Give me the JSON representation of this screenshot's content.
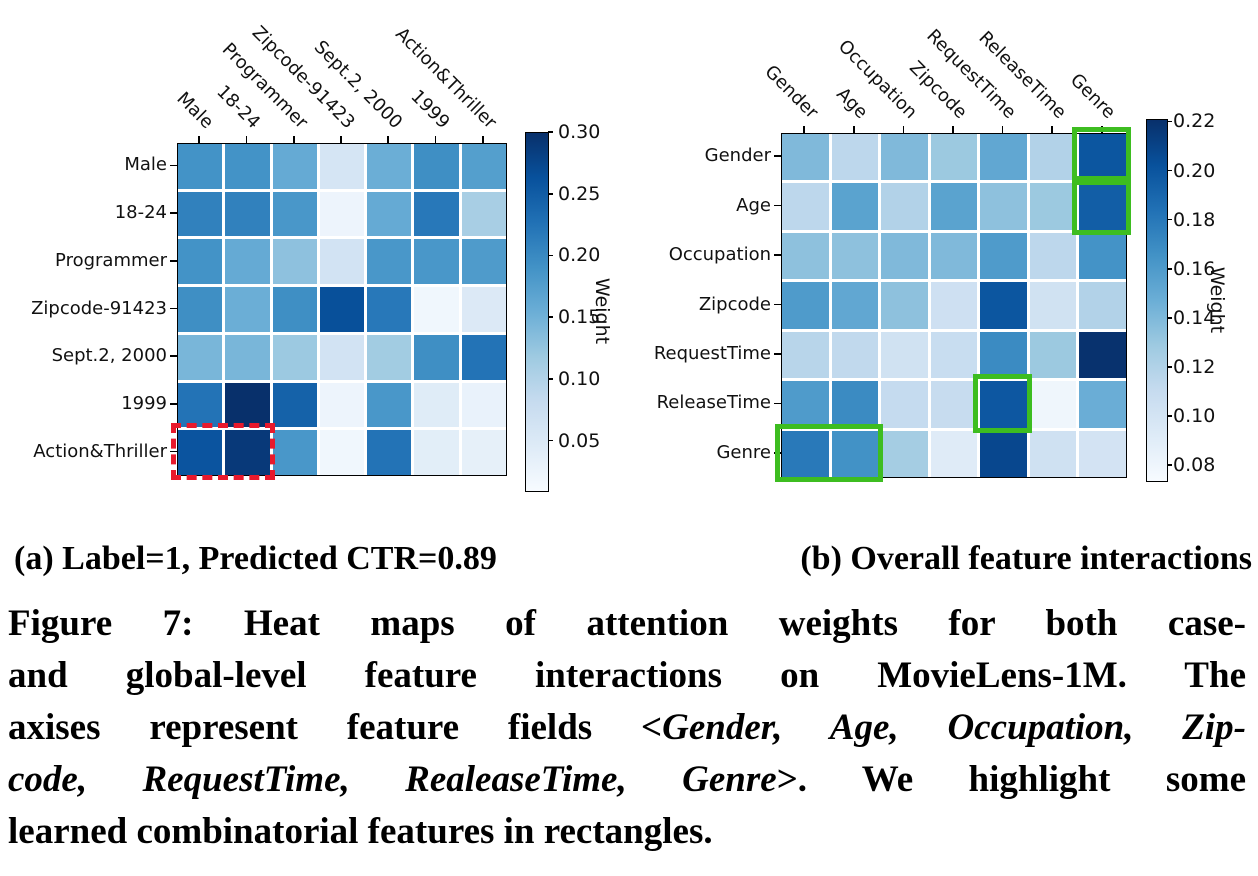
{
  "subcaptions": {
    "a": "(a) Label=1, Predicted CTR=0.89",
    "b": "(b) Overall feature interactions"
  },
  "caption": {
    "lines": [
      {
        "justify": true,
        "segments": [
          {
            "text": "Figure 7: Heat maps of attention weights for both case-",
            "italic": false
          }
        ]
      },
      {
        "justify": true,
        "segments": [
          {
            "text": "and global-level feature interactions on MovieLens-1M. The",
            "italic": false
          }
        ]
      },
      {
        "justify": true,
        "segments": [
          {
            "text": "axises represent feature fields <",
            "italic": false
          },
          {
            "text": "Gender, Age, Occupation, Zip-",
            "italic": true
          }
        ]
      },
      {
        "justify": true,
        "segments": [
          {
            "text": "code, RequestTime, RealeaseTime, Genre",
            "italic": true
          },
          {
            "text": ">. We highlight some",
            "italic": false
          }
        ]
      },
      {
        "justify": false,
        "segments": [
          {
            "text": "learned combinatorial features in rectangles.",
            "italic": false
          }
        ]
      }
    ]
  },
  "chart_data": [
    {
      "type": "heatmap",
      "panel": "a",
      "title": "(a) Label=1, Predicted CTR=0.89",
      "colormap": "Blues",
      "x_labels": [
        "Male",
        "18-24",
        "Programmer",
        "Zipcode-91423",
        "Sept.2, 2000",
        "1999",
        "Action&Thriller"
      ],
      "y_labels": [
        "Male",
        "18-24",
        "Programmer",
        "Zipcode-91423",
        "Sept.2, 2000",
        "1999",
        "Action&Thriller"
      ],
      "colorbar": {
        "label": "Weight",
        "vmin": 0.01,
        "vmax": 0.3,
        "ticks": [
          0.3,
          0.25,
          0.2,
          0.15,
          0.1,
          0.05
        ]
      },
      "values": [
        [
          0.19,
          0.19,
          0.16,
          0.06,
          0.155,
          0.195,
          0.175
        ],
        [
          0.21,
          0.21,
          0.185,
          0.025,
          0.16,
          0.22,
          0.11
        ],
        [
          0.19,
          0.16,
          0.13,
          0.065,
          0.185,
          0.185,
          0.18
        ],
        [
          0.195,
          0.155,
          0.195,
          0.265,
          0.22,
          0.02,
          0.05
        ],
        [
          0.145,
          0.145,
          0.12,
          0.065,
          0.115,
          0.195,
          0.225
        ],
        [
          0.225,
          0.3,
          0.245,
          0.025,
          0.185,
          0.045,
          0.03
        ],
        [
          0.26,
          0.29,
          0.185,
          0.02,
          0.225,
          0.04,
          0.035
        ]
      ],
      "highlights": [
        {
          "row": 6,
          "col": 0,
          "rowspan": 1,
          "colspan": 2,
          "style": "dashed",
          "color": "#e8192c",
          "note": "highlighted case-level combinatorial feature"
        }
      ]
    },
    {
      "type": "heatmap",
      "panel": "b",
      "title": "(b) Overall feature interactions",
      "colormap": "Blues",
      "x_labels": [
        "Gender",
        "Age",
        "Occupation",
        "Zipcode",
        "RequestTime",
        "ReleaseTime",
        "Genre"
      ],
      "y_labels": [
        "Gender",
        "Age",
        "Occupation",
        "Zipcode",
        "RequestTime",
        "ReleaseTime",
        "Genre"
      ],
      "colorbar": {
        "label": "Weight",
        "vmin": 0.074,
        "vmax": 0.221,
        "ticks": [
          0.22,
          0.2,
          0.18,
          0.16,
          0.14,
          0.12,
          0.1,
          0.08
        ]
      },
      "values": [
        [
          0.14,
          0.115,
          0.14,
          0.13,
          0.152,
          0.12,
          0.2
        ],
        [
          0.115,
          0.155,
          0.12,
          0.155,
          0.135,
          0.13,
          0.195
        ],
        [
          0.135,
          0.135,
          0.14,
          0.14,
          0.16,
          0.115,
          0.165
        ],
        [
          0.16,
          0.152,
          0.135,
          0.105,
          0.2,
          0.103,
          0.12
        ],
        [
          0.117,
          0.113,
          0.103,
          0.109,
          0.17,
          0.13,
          0.22
        ],
        [
          0.16,
          0.17,
          0.111,
          0.11,
          0.199,
          0.08,
          0.148
        ],
        [
          0.18,
          0.166,
          0.126,
          0.092,
          0.208,
          0.104,
          0.101
        ]
      ],
      "highlights": [
        {
          "row": 0,
          "col": 6,
          "rowspan": 1,
          "colspan": 1,
          "style": "solid",
          "color": "#3dbd20",
          "note": "Gender x Genre"
        },
        {
          "row": 1,
          "col": 6,
          "rowspan": 1,
          "colspan": 1,
          "style": "solid",
          "color": "#3dbd20",
          "note": "Age x Genre"
        },
        {
          "row": 5,
          "col": 4,
          "rowspan": 1,
          "colspan": 1,
          "style": "solid",
          "color": "#3dbd20",
          "note": "ReleaseTime x RequestTime"
        },
        {
          "row": 6,
          "col": 0,
          "rowspan": 1,
          "colspan": 2,
          "style": "solid",
          "color": "#3dbd20",
          "note": "Genre x Gender/Age"
        }
      ]
    }
  ]
}
